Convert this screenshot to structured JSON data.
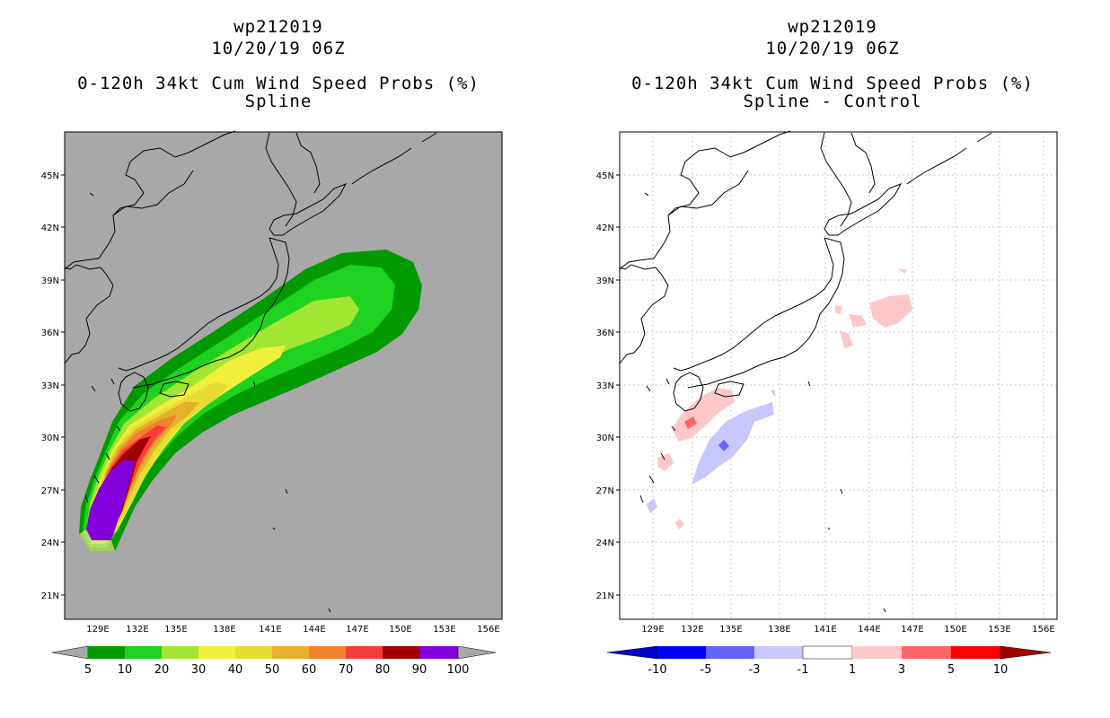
{
  "left_panel": {
    "storm_id": "wp212019",
    "datetime": "10/20/19 06Z",
    "product": "0-120h 34kt Cum Wind Speed Probs (%)",
    "subtitle": "Spline",
    "background_color": "#a8a8a8"
  },
  "right_panel": {
    "storm_id": "wp212019",
    "datetime": "10/20/19 06Z",
    "product": "0-120h 34kt Cum Wind Speed Probs (%)",
    "subtitle": "Spline - Control",
    "background_color": "#ffffff"
  },
  "map": {
    "lat_labels": [
      "45N",
      "42N",
      "39N",
      "36N",
      "33N",
      "30N",
      "27N",
      "24N",
      "21N"
    ],
    "lon_labels": [
      "129E",
      "132E",
      "135E",
      "138E",
      "141E",
      "144E",
      "147E",
      "150E",
      "153E",
      "156E"
    ]
  },
  "left_colorbar": {
    "labels": [
      "5",
      "10",
      "20",
      "30",
      "40",
      "50",
      "60",
      "70",
      "80",
      "90",
      "100"
    ],
    "colors": [
      "#009a00",
      "#1fd21f",
      "#a0e632",
      "#f0f03c",
      "#e6dc32",
      "#e6af2d",
      "#f0822d",
      "#fa3c3c",
      "#a00000",
      "#8200dc"
    ]
  },
  "right_colorbar": {
    "labels": [
      "-10",
      "-5",
      "-3",
      "-1",
      "1",
      "3",
      "5",
      "10"
    ],
    "colors": [
      "#0000c8",
      "#0000ff",
      "#6464ff",
      "#c8c8ff",
      "#ffffff",
      "#ffc8c8",
      "#ff6464",
      "#ff0000",
      "#a00000"
    ]
  }
}
